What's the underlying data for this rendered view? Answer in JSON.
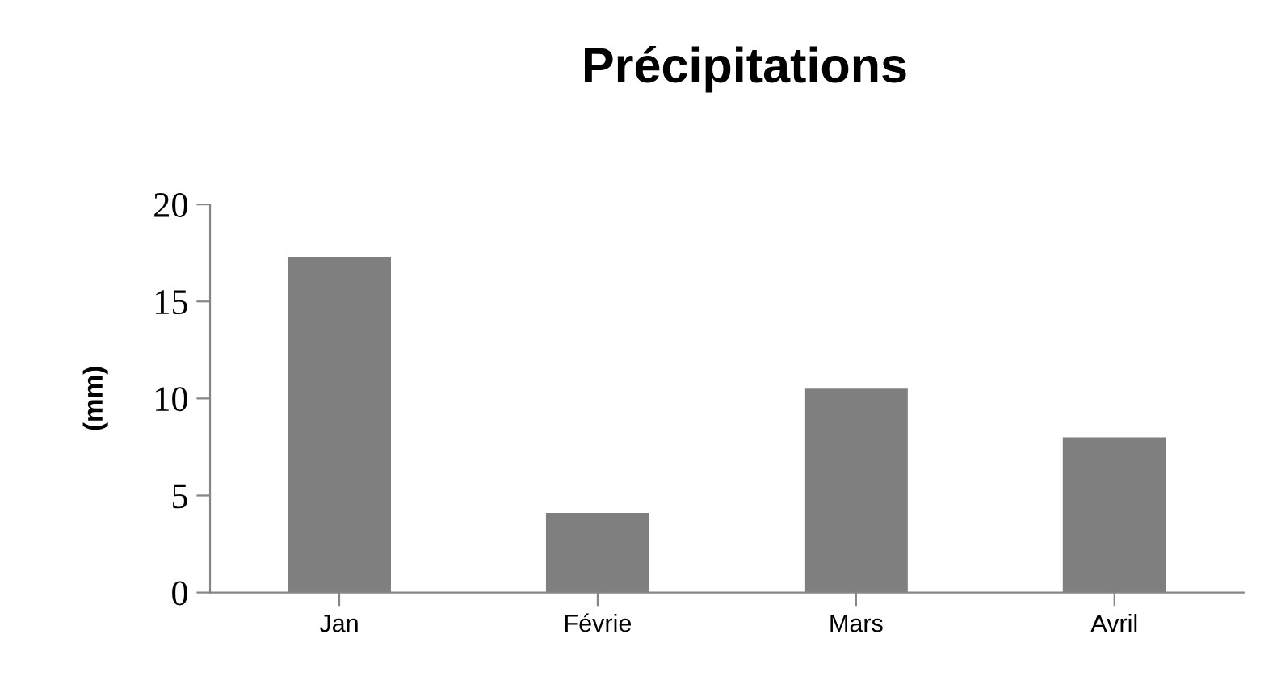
{
  "chart_data": {
    "type": "bar",
    "title": "Précipitations",
    "ylabel": "(mm)",
    "categories": [
      "Jan",
      "Févrie",
      "Mars",
      "Avril"
    ],
    "values": [
      17.3,
      4.1,
      10.5,
      8.0
    ],
    "color": "#7f7f7f",
    "ylim": [
      0,
      20
    ],
    "yticks": [
      0,
      5,
      10,
      15,
      20
    ],
    "grid": false,
    "legend": false
  }
}
